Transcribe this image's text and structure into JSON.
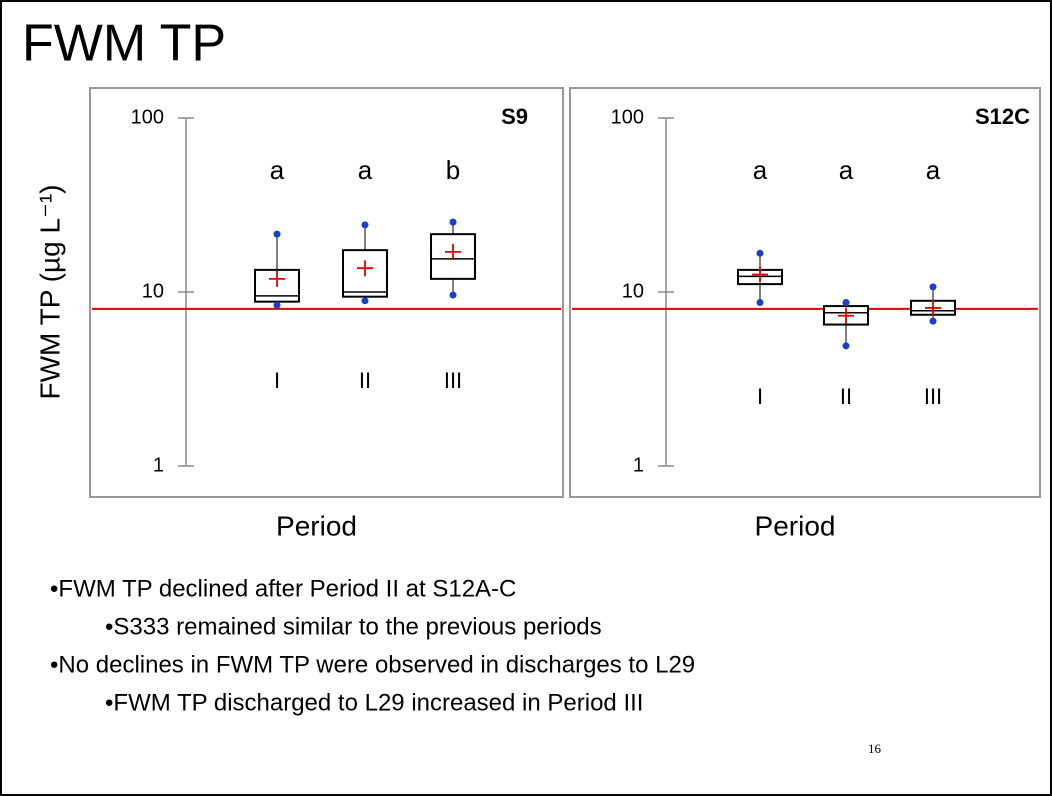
{
  "slide": {
    "title": "FWM TP",
    "bullets": [
      {
        "level": 1,
        "text": "•FWM TP declined after Period II at S12A-C"
      },
      {
        "level": 2,
        "text": "•S333 remained similar to the previous periods"
      },
      {
        "level": 1,
        "text": "•No declines in FWM TP were observed in discharges to L29"
      },
      {
        "level": 2,
        "text": "•FWM TP discharged to L29 increased in Period III"
      }
    ],
    "page": "16"
  },
  "chart_data": [
    {
      "type": "box",
      "title": "S9",
      "ylabel": "FWM TP (µg L⁻¹)",
      "xlabel": "Period",
      "categories": [
        "I",
        "II",
        "III"
      ],
      "letters": [
        "a",
        "a",
        "b"
      ],
      "boxes": [
        {
          "min": 8.4,
          "q1": 8.8,
          "median": 9.5,
          "q3": 13.4,
          "max": 21.5,
          "mean": 11.9
        },
        {
          "min": 8.9,
          "q1": 9.4,
          "median": 10,
          "q3": 17.4,
          "max": 24.3,
          "mean": 13.7
        },
        {
          "min": 9.6,
          "q1": 11.9,
          "median": 15.5,
          "q3": 21.5,
          "max": 25.2,
          "mean": 17
        }
      ],
      "reference_line": 8,
      "reference_color": "#e00000",
      "box_color": "#000000",
      "point_color": "#1a3fcc",
      "mean_color": "#e00000",
      "log_scale": true,
      "ylim": [
        1,
        100
      ],
      "yticks": [
        1,
        10,
        100
      ]
    },
    {
      "type": "box",
      "title": "S12C",
      "xlabel": "Period",
      "categories": [
        "I",
        "II",
        "III"
      ],
      "letters": [
        "a",
        "a",
        "a"
      ],
      "boxes": [
        {
          "min": 8.7,
          "q1": 11.1,
          "median": 12.3,
          "q3": 13.4,
          "max": 16.7,
          "mean": 12.6
        },
        {
          "min": 4.9,
          "q1": 6.5,
          "median": 7.6,
          "q3": 8.3,
          "max": 8.7,
          "mean": 7.3
        },
        {
          "min": 6.8,
          "q1": 7.4,
          "median": 7.8,
          "q3": 8.9,
          "max": 10.7,
          "mean": 8.1
        }
      ],
      "reference_line": 8,
      "reference_color": "#e00000",
      "box_color": "#000000",
      "point_color": "#1a3fcc",
      "mean_color": "#e00000",
      "log_scale": true,
      "ylim": [
        1,
        100
      ],
      "yticks": [
        1,
        10,
        100
      ]
    }
  ]
}
